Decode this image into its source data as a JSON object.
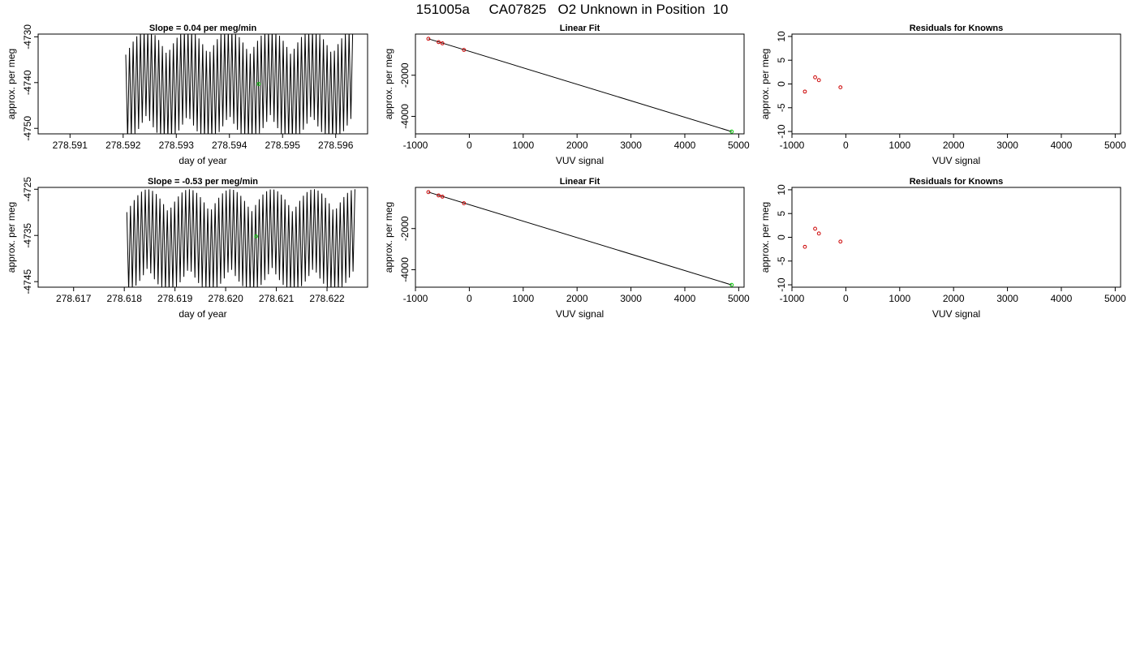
{
  "page": {
    "title": "151005a     CA07825   O2 Unknown in Position  10"
  },
  "chart_data": [
    {
      "type": "line",
      "title": "Slope =  0.04  per meg/min",
      "xlabel": "day of year",
      "ylabel": "approx. per meg",
      "xlim": [
        278.5904,
        278.5966
      ],
      "ylim": [
        -4751.2,
        -4729.4
      ],
      "xticks": [
        "278.591",
        "278.592",
        "278.593",
        "278.594",
        "278.595",
        "278.596"
      ],
      "yticks": [
        "-4730",
        "-4740",
        "-4750"
      ],
      "series": [
        {
          "t0": 278.59205,
          "t1": 278.59632,
          "center": -4740.5,
          "amplitude": 12,
          "cycles": 62,
          "color": "#000000"
        }
      ],
      "highlight_point": {
        "x": 278.59455,
        "y": -4740.3,
        "color": "#00cc00"
      }
    },
    {
      "type": "scatter",
      "title": "Linear Fit",
      "xlabel": "VUV signal",
      "ylabel": "approx. per meg",
      "xlim": [
        -1000,
        5100
      ],
      "ylim": [
        -4850,
        0
      ],
      "xticks": [
        "-1000",
        "0",
        "1000",
        "2000",
        "3000",
        "4000",
        "5000"
      ],
      "yticks": [
        "-2000",
        "-4000"
      ],
      "points": [
        {
          "x": -760,
          "y": -230,
          "color": "#cc0000"
        },
        {
          "x": -570,
          "y": -390,
          "color": "#cc0000"
        },
        {
          "x": -500,
          "y": -450,
          "color": "#cc0000"
        },
        {
          "x": -100,
          "y": -770,
          "color": "#cc0000"
        },
        {
          "x": 4870,
          "y": -4740,
          "color": "#00cc00"
        }
      ],
      "fit_line": {
        "x": [
          -760,
          4870
        ],
        "y": [
          -230,
          -4740
        ]
      }
    },
    {
      "type": "scatter",
      "title": "Residuals for Knowns",
      "xlabel": "VUV signal",
      "ylabel": "approx. per meg",
      "xlim": [
        -1000,
        5100
      ],
      "ylim": [
        -10.5,
        10.5
      ],
      "xticks": [
        "-1000",
        "0",
        "1000",
        "2000",
        "3000",
        "4000",
        "5000"
      ],
      "yticks": [
        "10",
        "5",
        "0",
        "-5",
        "-10"
      ],
      "points": [
        {
          "x": -760,
          "y": -1.6,
          "color": "#cc0000"
        },
        {
          "x": -570,
          "y": 1.4,
          "color": "#cc0000"
        },
        {
          "x": -500,
          "y": 0.8,
          "color": "#cc0000"
        },
        {
          "x": -100,
          "y": -0.7,
          "color": "#cc0000"
        }
      ]
    },
    {
      "type": "line",
      "title": "Slope =  -0.53  per meg/min",
      "xlabel": "day of year",
      "ylabel": "approx. per meg",
      "xlim": [
        278.6163,
        278.6228
      ],
      "ylim": [
        -4746.2,
        -4724.6
      ],
      "xticks": [
        "278.617",
        "278.618",
        "278.619",
        "278.620",
        "278.621",
        "278.622"
      ],
      "yticks": [
        "-4725",
        "-4735",
        "-4745"
      ],
      "series": [
        {
          "t0": 278.61805,
          "t1": 278.62255,
          "center": -4736,
          "amplitude": 11,
          "cycles": 62,
          "color": "#000000"
        }
      ],
      "highlight_point": {
        "x": 278.6206,
        "y": -4735.2,
        "color": "#00cc00"
      }
    },
    {
      "type": "scatter",
      "title": "Linear Fit",
      "xlabel": "VUV signal",
      "ylabel": "approx. per meg",
      "xlim": [
        -1000,
        5100
      ],
      "ylim": [
        -4850,
        0
      ],
      "xticks": [
        "-1000",
        "0",
        "1000",
        "2000",
        "3000",
        "4000",
        "5000"
      ],
      "yticks": [
        "-2000",
        "-4000"
      ],
      "points": [
        {
          "x": -760,
          "y": -230,
          "color": "#cc0000"
        },
        {
          "x": -570,
          "y": -390,
          "color": "#cc0000"
        },
        {
          "x": -500,
          "y": -450,
          "color": "#cc0000"
        },
        {
          "x": -100,
          "y": -770,
          "color": "#cc0000"
        },
        {
          "x": 4870,
          "y": -4740,
          "color": "#00cc00"
        }
      ],
      "fit_line": {
        "x": [
          -760,
          4870
        ],
        "y": [
          -230,
          -4740
        ]
      }
    },
    {
      "type": "scatter",
      "title": "Residuals for Knowns",
      "xlabel": "VUV signal",
      "ylabel": "approx. per meg",
      "xlim": [
        -1000,
        5100
      ],
      "ylim": [
        -10.5,
        10.5
      ],
      "xticks": [
        "-1000",
        "0",
        "1000",
        "2000",
        "3000",
        "4000",
        "5000"
      ],
      "yticks": [
        "10",
        "5",
        "0",
        "-5",
        "-10"
      ],
      "points": [
        {
          "x": -760,
          "y": -2.0,
          "color": "#cc0000"
        },
        {
          "x": -570,
          "y": 1.8,
          "color": "#cc0000"
        },
        {
          "x": -500,
          "y": 0.8,
          "color": "#cc0000"
        },
        {
          "x": -100,
          "y": -0.9,
          "color": "#cc0000"
        }
      ]
    }
  ]
}
